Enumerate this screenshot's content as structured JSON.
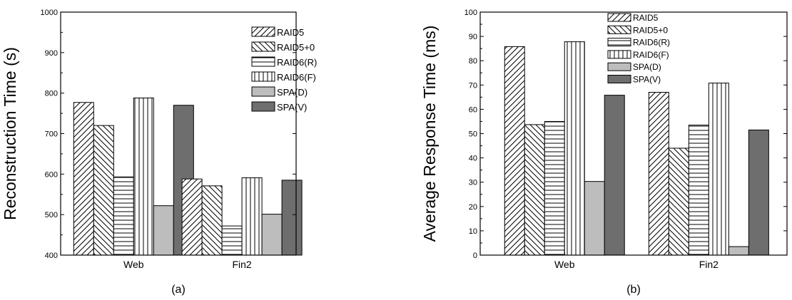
{
  "chart_data": [
    {
      "type": "bar",
      "caption": "(a)",
      "categories": [
        "Web",
        "Fin2"
      ],
      "ylabel": "Reconstruction Time (s)",
      "xlabel": "",
      "ylim": [
        400,
        1000
      ],
      "yticks": [
        400,
        500,
        600,
        700,
        800,
        900,
        1000
      ],
      "legend_position": "top-right",
      "series": [
        {
          "name": "RAID5",
          "pattern": "diag-right",
          "values": [
            777,
            588
          ]
        },
        {
          "name": "RAID5+0",
          "pattern": "diag-left",
          "values": [
            720,
            571
          ]
        },
        {
          "name": "RAID6(R)",
          "pattern": "horizontal",
          "values": [
            593,
            472
          ]
        },
        {
          "name": "RAID6(F)",
          "pattern": "vertical",
          "values": [
            788,
            591
          ]
        },
        {
          "name": "SPA(D)",
          "pattern": "fill",
          "color": "#bdbdbd",
          "values": [
            522,
            501
          ]
        },
        {
          "name": "SPA(V)",
          "pattern": "fill",
          "color": "#6e6e6e",
          "values": [
            770,
            585
          ]
        }
      ]
    },
    {
      "type": "bar",
      "caption": "(b)",
      "categories": [
        "Web",
        "Fin2"
      ],
      "ylabel": "Average Response Time (ms)",
      "xlabel": "",
      "ylim": [
        0,
        100
      ],
      "yticks": [
        0,
        10,
        20,
        30,
        40,
        50,
        60,
        70,
        80,
        90,
        100
      ],
      "legend_position": "top-center",
      "series": [
        {
          "name": "RAID5",
          "pattern": "diag-right",
          "values": [
            85.8,
            67.0
          ]
        },
        {
          "name": "RAID5+0",
          "pattern": "diag-left",
          "values": [
            53.7,
            44.0
          ]
        },
        {
          "name": "RAID6(R)",
          "pattern": "horizontal",
          "values": [
            55.0,
            53.5
          ]
        },
        {
          "name": "RAID6(F)",
          "pattern": "vertical",
          "values": [
            87.8,
            70.8
          ]
        },
        {
          "name": "SPA(D)",
          "pattern": "fill",
          "color": "#bdbdbd",
          "values": [
            30.3,
            3.5
          ]
        },
        {
          "name": "SPA(V)",
          "pattern": "fill",
          "color": "#6e6e6e",
          "values": [
            65.8,
            51.5
          ]
        }
      ]
    }
  ]
}
